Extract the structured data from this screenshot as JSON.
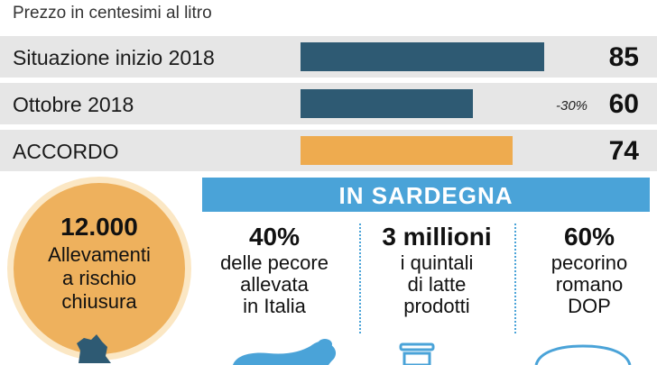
{
  "subtitle": "Prezzo in centesimi al litro",
  "chart_data": {
    "type": "bar",
    "orientation": "horizontal",
    "title": "",
    "xlabel": "",
    "ylabel": "",
    "xlim": [
      0,
      100
    ],
    "categories": [
      "Situazione inizio 2018",
      "Ottobre 2018",
      "ACCORDO"
    ],
    "values": [
      85,
      60,
      74
    ],
    "value_labels": [
      "85",
      "60",
      "74"
    ],
    "bar_colors": [
      "#2e5a73",
      "#2e5a73",
      "#eeab4f"
    ],
    "annotations": [
      {
        "category": "Ottobre 2018",
        "text": "-30%"
      }
    ]
  },
  "circle": {
    "number": "12.000",
    "lines": [
      "Allevamenti",
      "a rischio",
      "chiusura"
    ],
    "color": "#eeb15d"
  },
  "banner": {
    "title": "IN SARDEGNA",
    "color": "#4aa3d8"
  },
  "stats": [
    {
      "number": "40%",
      "lines": [
        "delle pecore",
        "allevata",
        "in Italia"
      ],
      "icon": "sheep-icon"
    },
    {
      "number": "3 millioni",
      "lines": [
        "i quintali",
        "di latte",
        "prodotti"
      ],
      "icon": "milk-can-icon"
    },
    {
      "number": "60%",
      "lines": [
        "pecorino",
        "romano",
        "DOP"
      ],
      "icon": "cheese-icon"
    }
  ]
}
